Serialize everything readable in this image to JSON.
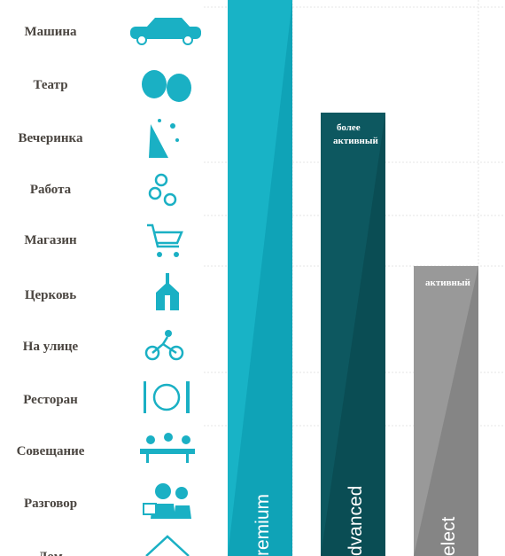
{
  "rows": [
    "Машина",
    "Театр",
    "Вечеринка",
    "Работа",
    "Магазин",
    "Церковь",
    "На улице",
    "Ресторан",
    "Совещание",
    "Разговор",
    "Дом"
  ],
  "bars": [
    {
      "label": "remium"
    },
    {
      "label": "dvanced",
      "note": [
        "более",
        "активный"
      ]
    },
    {
      "label": "elect",
      "note": [
        "активный"
      ]
    }
  ]
}
